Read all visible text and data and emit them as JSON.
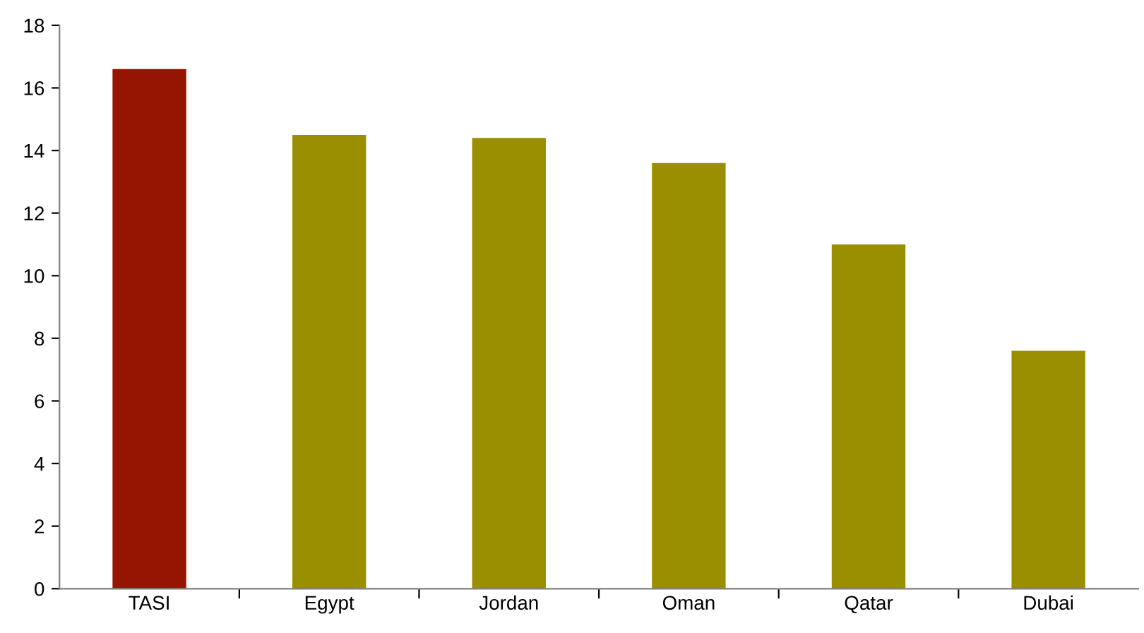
{
  "chart_data": {
    "type": "bar",
    "categories": [
      "TASI",
      "Egypt",
      "Jordan",
      "Oman",
      "Qatar",
      "Dubai"
    ],
    "values": [
      16.6,
      14.5,
      14.4,
      13.6,
      11.0,
      7.6
    ],
    "colors": [
      "#961500",
      "#998f00",
      "#998f00",
      "#998f00",
      "#998f00",
      "#998f00"
    ],
    "ylim": [
      0,
      18
    ],
    "yticks": [
      0,
      2,
      4,
      6,
      8,
      10,
      12,
      14,
      16,
      18
    ],
    "grid": false,
    "legend": false
  }
}
